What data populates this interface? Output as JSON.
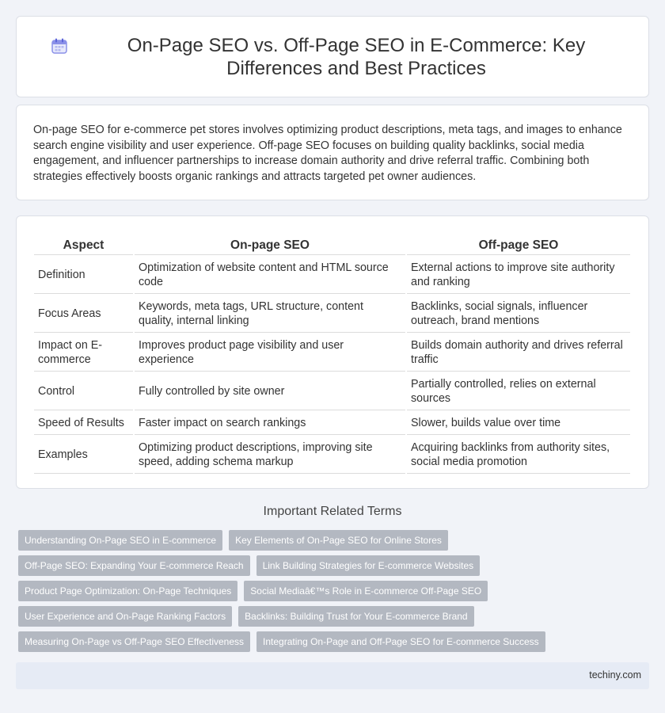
{
  "header": {
    "icon": "calendar-icon",
    "title": "On-Page SEO vs. Off-Page SEO in E-Commerce: Key Differences and Best Practices"
  },
  "intro": "On-page SEO for e-commerce pet stores involves optimizing product descriptions, meta tags, and images to enhance search engine visibility and user experience. Off-page SEO focuses on building quality backlinks, social media engagement, and influencer partnerships to increase domain authority and drive referral traffic. Combining both strategies effectively boosts organic rankings and attracts targeted pet owner audiences.",
  "table": {
    "headers": [
      "Aspect",
      "On-page SEO",
      "Off-page SEO"
    ],
    "rows": [
      [
        "Definition",
        "Optimization of website content and HTML source code",
        "External actions to improve site authority and ranking"
      ],
      [
        "Focus Areas",
        "Keywords, meta tags, URL structure, content quality, internal linking",
        "Backlinks, social signals, influencer outreach, brand mentions"
      ],
      [
        "Impact on E-commerce",
        "Improves product page visibility and user experience",
        "Builds domain authority and drives referral traffic"
      ],
      [
        "Control",
        "Fully controlled by site owner",
        "Partially controlled, relies on external sources"
      ],
      [
        "Speed of Results",
        "Faster impact on search rankings",
        "Slower, builds value over time"
      ],
      [
        "Examples",
        "Optimizing product descriptions, improving site speed, adding schema markup",
        "Acquiring backlinks from authority sites, social media promotion"
      ]
    ]
  },
  "related": {
    "title": "Important Related Terms",
    "tags": [
      [
        "Understanding On-Page SEO in E-commerce",
        "Key Elements of On-Page SEO for Online Stores"
      ],
      [
        "Off-Page SEO: Expanding Your E-commerce Reach",
        "Link Building Strategies for E-commerce Websites"
      ],
      [
        "Product Page Optimization: On-Page Techniques",
        "Social Mediaâ€™s Role in E-commerce Off-Page SEO"
      ],
      [
        "User Experience and On-Page Ranking Factors",
        "Backlinks: Building Trust for Your E-commerce Brand"
      ],
      [
        "Measuring On-Page vs Off-Page SEO Effectiveness",
        "Integrating On-Page and Off-Page SEO for E-commerce Success"
      ]
    ]
  },
  "footer": {
    "site": "techiny.com"
  },
  "colors": {
    "tag_bg": "#b3b8c1",
    "page_bg": "#f1f3f8",
    "footer_bg": "#e6ebf5",
    "icon_accent": "#7b83e6"
  }
}
